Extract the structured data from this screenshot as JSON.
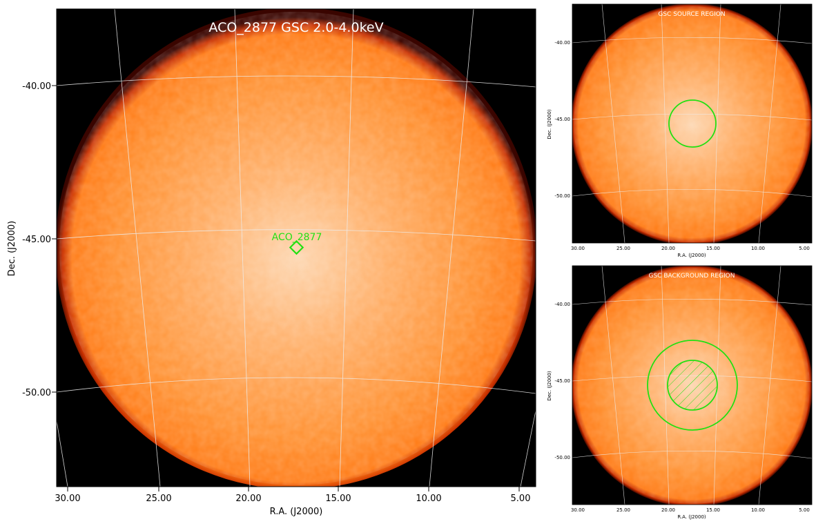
{
  "main": {
    "title": "ACO_2877 GSC 2.0-4.0keV",
    "source_label": "ACO_2877",
    "xlabel": "R.A. (J2000)",
    "ylabel": "Dec. (J2000)",
    "x_ticks": [
      "30.00",
      "25.00",
      "20.00",
      "15.00",
      "10.00",
      "5.00"
    ],
    "y_ticks": [
      "-40.00",
      "-45.00",
      "-50.00"
    ]
  },
  "source_panel": {
    "title": "GSC SOURCE REGION",
    "xlabel": "R.A. (J2000)",
    "ylabel": "Dec. (J2000)",
    "x_ticks": [
      "30.00",
      "25.00",
      "20.00",
      "15.00",
      "10.00",
      "5.00"
    ],
    "y_ticks": [
      "-40.00",
      "-45.00",
      "-50.00"
    ]
  },
  "background_panel": {
    "title": "GSC BACKGROUND REGION",
    "xlabel": "R.A. (J2000)",
    "ylabel": "Dec. (J2000)",
    "x_ticks": [
      "30.00",
      "25.00",
      "20.00",
      "15.00",
      "10.00",
      "5.00"
    ],
    "y_ticks": [
      "-40.00",
      "-45.00",
      "-50.00"
    ]
  },
  "colors": {
    "disk_center": "#fdd8b4",
    "disk_mid": "#ff9a3c",
    "disk_edge": "#ff7a10",
    "limb": "#8a1000",
    "sky": "#000000",
    "region": "#22e012",
    "grid": "#e8e8e8"
  }
}
